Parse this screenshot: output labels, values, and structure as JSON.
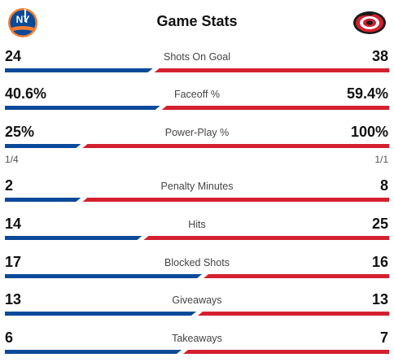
{
  "header": {
    "title": "Game Stats",
    "home_logo": "islanders-logo",
    "away_logo": "hurricanes-logo"
  },
  "colors": {
    "home": "#0b4a9a",
    "away": "#d4202f"
  },
  "stats": [
    {
      "label": "Shots On Goal",
      "left": "24",
      "right": "38",
      "share": 0.387
    },
    {
      "label": "Faceoff %",
      "left": "40.6%",
      "right": "59.4%",
      "share": 0.406
    },
    {
      "label": "Power-Play %",
      "left": "25%",
      "right": "100%",
      "share": 0.2,
      "left_sub": "1/4",
      "right_sub": "1/1"
    },
    {
      "label": "Penalty Minutes",
      "left": "2",
      "right": "8",
      "share": 0.2
    },
    {
      "label": "Hits",
      "left": "14",
      "right": "25",
      "share": 0.359
    },
    {
      "label": "Blocked Shots",
      "left": "17",
      "right": "16",
      "share": 0.515
    },
    {
      "label": "Giveaways",
      "left": "13",
      "right": "13",
      "share": 0.5
    },
    {
      "label": "Takeaways",
      "left": "6",
      "right": "7",
      "share": 0.462
    }
  ]
}
